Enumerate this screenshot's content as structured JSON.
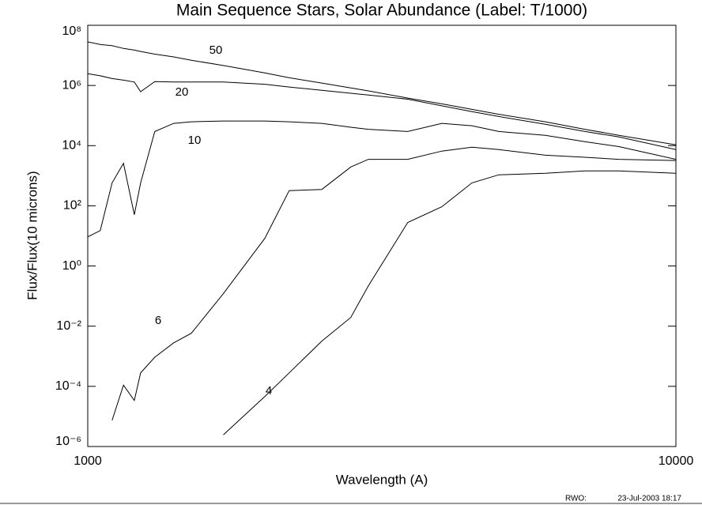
{
  "chart_data": {
    "type": "line",
    "title": "Main Sequence Stars, Solar Abundance (Label: T/1000)",
    "xlabel": "Wavelength (A)",
    "ylabel": "Flux/Flux(10 microns)",
    "x_log": true,
    "y_log": true,
    "color": "#000000",
    "xlim": [
      1000,
      10000
    ],
    "xticks": [
      1000,
      10000
    ],
    "ylim": [
      1e-06,
      100000000.0
    ],
    "yticks": [
      {
        "value": 100000000.0,
        "label": "10⁸"
      },
      {
        "value": 1000000.0,
        "label": "10⁶"
      },
      {
        "value": 10000.0,
        "label": "10⁴"
      },
      {
        "value": 100,
        "label": "10²"
      },
      {
        "value": 1,
        "label": "10⁰"
      },
      {
        "value": 0.01,
        "label": "10⁻²"
      },
      {
        "value": 0.0001,
        "label": "10⁻⁴"
      },
      {
        "value": 1e-06,
        "label": "10⁻⁶"
      }
    ],
    "x": [
      1000,
      1050,
      1100,
      1150,
      1200,
      1230,
      1300,
      1400,
      1500,
      1700,
      2000,
      2200,
      2500,
      2800,
      3000,
      3500,
      4000,
      4500,
      5000,
      6000,
      7000,
      8000,
      10000
    ],
    "series": [
      {
        "name": "50",
        "values": [
          28000000.0,
          23000000.0,
          21000000.0,
          17000000.0,
          15000000.0,
          13500000.0,
          11000000.0,
          8900000.0,
          6900000.0,
          4600000.0,
          2600000.0,
          1800000.0,
          1200000.0,
          830000.0,
          660000.0,
          380000.0,
          245000.0,
          160000.0,
          110000.0,
          62000.0,
          35000.0,
          22000.0,
          10700.0
        ]
      },
      {
        "name": "20",
        "values": [
          2450000.0,
          2100000.0,
          1700000.0,
          1500000.0,
          1300000.0,
          620000.0,
          1350000.0,
          1300000.0,
          1300000.0,
          1300000.0,
          1100000.0,
          890000.0,
          690000.0,
          550000.0,
          480000.0,
          350000.0,
          210000.0,
          135000.0,
          93000.0,
          51000.0,
          29500.0,
          19500.0,
          7400.0
        ]
      },
      {
        "name": "10",
        "values": [
          9.3,
          15,
          580,
          2600,
          51,
          580,
          29500.0,
          55000.0,
          62000.0,
          66000.0,
          66000.0,
          62000.0,
          55000.0,
          41000.0,
          35000.0,
          29500.0,
          55000.0,
          46000.0,
          29500.0,
          22000.0,
          13500.0,
          9300.0,
          3500.0
        ]
      },
      {
        "name": "6",
        "values": [
          null,
          null,
          7.4e-06,
          0.00011,
          3.4e-05,
          0.00028,
          0.00093,
          0.0028,
          0.0058,
          0.12,
          8.3,
          320,
          350,
          1950,
          3500,
          3500,
          6600,
          8900,
          7400,
          4800,
          4100,
          3500,
          3200
        ]
      },
      {
        "name": "4",
        "values": [
          null,
          null,
          null,
          null,
          null,
          null,
          null,
          null,
          null,
          2.45e-06,
          4.6e-05,
          0.00028,
          0.0032,
          0.0195,
          0.22,
          28,
          93,
          580,
          1070,
          1200,
          1450,
          1450,
          1200
        ]
      }
    ],
    "footer": [
      "RWO:",
      "23-Jul-2003 18:17"
    ]
  }
}
